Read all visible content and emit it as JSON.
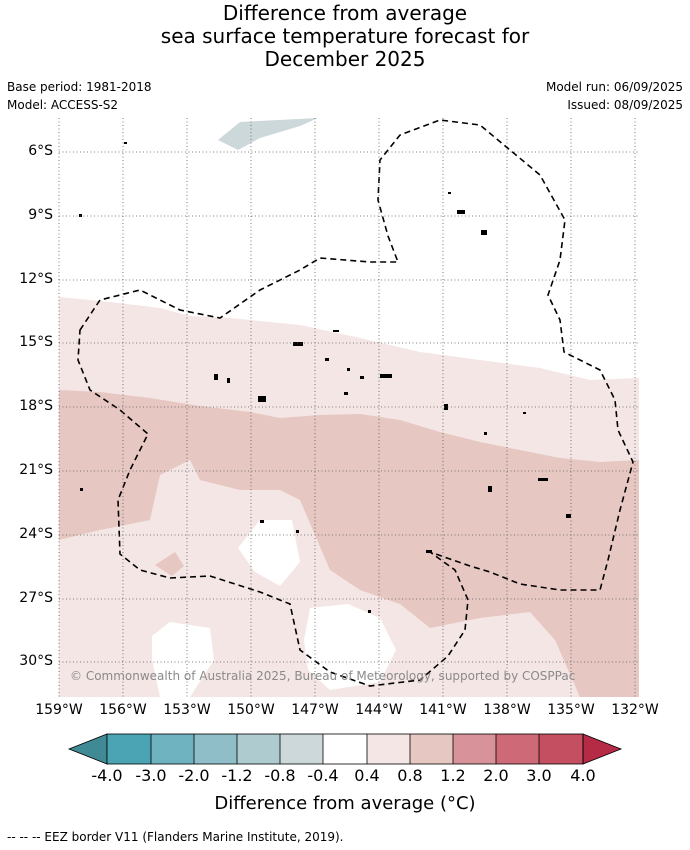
{
  "title": {
    "line1": "Difference from average",
    "line2": "sea surface temperature forecast for",
    "line3": "December 2025"
  },
  "meta": {
    "base_period": "Base period: 1981-2018",
    "model": "Model: ACCESS-S2",
    "model_run": "Model run: 06/09/2025",
    "issued": "Issued: 08/09/2025"
  },
  "map": {
    "lat_ticks": [
      "6°S",
      "9°S",
      "12°S",
      "15°S",
      "18°S",
      "21°S",
      "24°S",
      "27°S",
      "30°S"
    ],
    "lon_ticks": [
      "159°W",
      "156°W",
      "153°W",
      "150°W",
      "147°W",
      "144°W",
      "141°W",
      "138°W",
      "135°W",
      "132°W"
    ],
    "copyright": "© Commonwealth of Australia 2025, Bureau of Meteorology, supported by COSPPac"
  },
  "colorbar": {
    "title": "Difference from average (°C)",
    "ticks": [
      "-4.0",
      "-3.0",
      "-2.0",
      "-1.2",
      "-0.8",
      "-0.4",
      "0.4",
      "0.8",
      "1.2",
      "2.0",
      "3.0",
      "4.0"
    ],
    "colors": [
      "#3f8a95",
      "#4aa4b4",
      "#6fb2c0",
      "#8fbec8",
      "#aecbd0",
      "#ccd8da",
      "#ffffff",
      "#f4e6e5",
      "#e7c7c2",
      "#d7929a",
      "#ce6a78",
      "#c44f61",
      "#b52a45"
    ]
  },
  "legend_footer": "--  --  -- EEZ border V11 (Flanders Marine Institute, 2019)."
}
